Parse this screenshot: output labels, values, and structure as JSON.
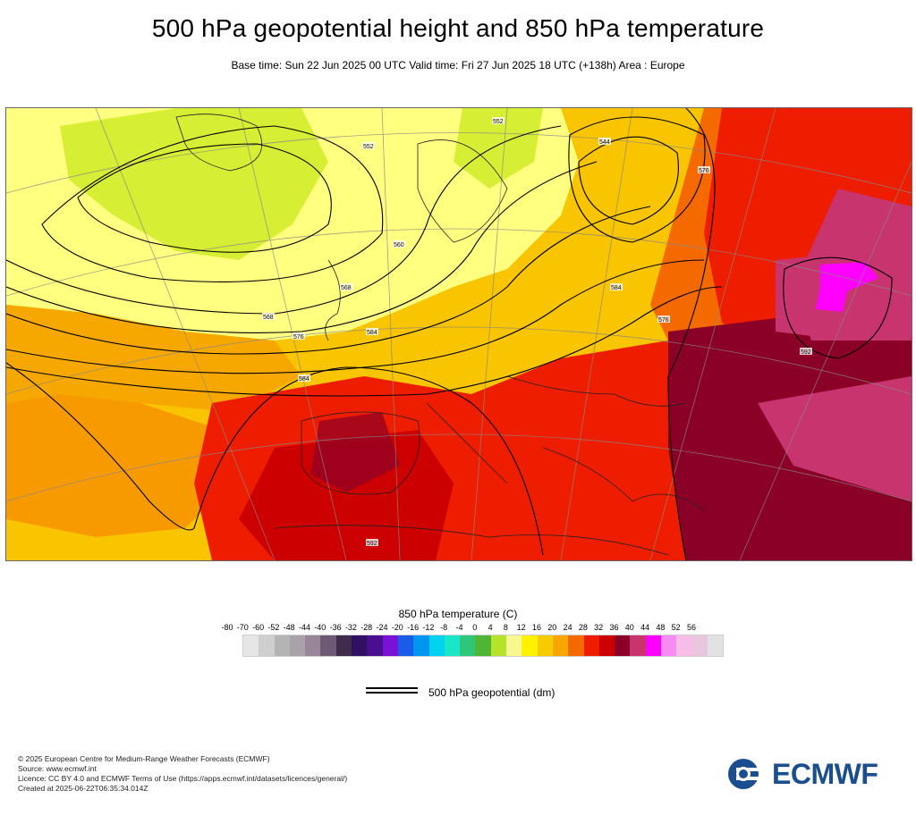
{
  "header": {
    "title": "500 hPa geopotential height and 850 hPa temperature",
    "subtitle": "Base time: Sun 22 Jun 2025 00 UTC Valid time: Fri 27 Jun 2025 18 UTC (+138h) Area : Europe"
  },
  "legend": {
    "title": "850 hPa temperature (C)",
    "ticks": [
      "-80",
      "-70",
      "-60",
      "-52",
      "-48",
      "-44",
      "-40",
      "-36",
      "-32",
      "-28",
      "-24",
      "-20",
      "-16",
      "-12",
      "-8",
      "-4",
      "0",
      "4",
      "8",
      "12",
      "16",
      "20",
      "24",
      "28",
      "32",
      "36",
      "40",
      "44",
      "48",
      "52",
      "56"
    ],
    "colors": [
      "#e6e6e6",
      "#cfcfcf",
      "#b4b4b4",
      "#a9a2a8",
      "#9a869b",
      "#6f5a76",
      "#3f2b4c",
      "#301063",
      "#4a0f8f",
      "#7a12d6",
      "#1a5ce8",
      "#0096f0",
      "#00d2f0",
      "#19e6c7",
      "#2ec77a",
      "#4fb635",
      "#b6e22a",
      "#f7f990",
      "#fff200",
      "#f6cc00",
      "#f7a800",
      "#f56a00",
      "#ef1d00",
      "#cc0000",
      "#8b0026",
      "#c7346e",
      "#ff00ff",
      "#f68bf2",
      "#f6bde6",
      "#e8c6de",
      "#e2e2e2"
    ]
  },
  "contour_key": {
    "label": "500 hPa geopotential (dm)"
  },
  "map": {
    "contour_labels": [
      "544",
      "552",
      "560",
      "568",
      "576",
      "584",
      "592",
      "552",
      "576",
      "584",
      "592",
      "584",
      "576",
      "568"
    ],
    "colors": {
      "yellow": "#ffff80",
      "lightgreen": "#d6ee33",
      "amber": "#f9c400",
      "orange": "#f79a00",
      "darkorange": "#f56a00",
      "red": "#ef1d00",
      "darkred": "#cc0000",
      "maroon": "#8b0026",
      "pink": "#c7346e",
      "magenta": "#ff00ff"
    }
  },
  "footer": {
    "line1": "© 2025 European Centre for Medium-Range Weather Forecasts (ECMWF)",
    "line2": "Source: www.ecmwf.int",
    "line3": "Licence: CC BY 4.0 and ECMWF Terms of Use (https://apps.ecmwf.int/datasets/licences/general/)",
    "line4": "Created at 2025-06-22T06:35:34.014Z"
  },
  "logo": {
    "text": "ECMWF"
  }
}
